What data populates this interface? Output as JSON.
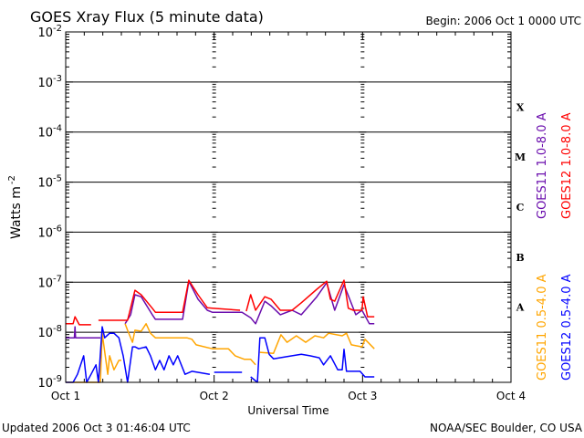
{
  "chart_data": {
    "type": "line",
    "title": "GOES Xray Flux (5 minute data)",
    "begin_label": "Begin:  2006 Oct 1 0000 UTC",
    "xlabel": "Universal Time",
    "ylabel": "Watts m",
    "ylabel_sup": "-2",
    "yscale": "log",
    "x_units": "hours since 2006 Oct 1 0000 UTC",
    "xlim": [
      0,
      72
    ],
    "ylim_log10": [
      -9,
      -2
    ],
    "x_ticks": [
      {
        "value": 0,
        "label": "Oct 1"
      },
      {
        "value": 24,
        "label": "Oct 2"
      },
      {
        "value": 48,
        "label": "Oct 3"
      },
      {
        "value": 72,
        "label": "Oct 4"
      }
    ],
    "y_ticks": [
      {
        "exp": -2,
        "base": "10",
        "sup": "-2"
      },
      {
        "exp": -3,
        "base": "10",
        "sup": "-3"
      },
      {
        "exp": -4,
        "base": "10",
        "sup": "-4"
      },
      {
        "exp": -5,
        "base": "10",
        "sup": "-5"
      },
      {
        "exp": -6,
        "base": "10",
        "sup": "-6"
      },
      {
        "exp": -7,
        "base": "10",
        "sup": "-7"
      },
      {
        "exp": -8,
        "base": "10",
        "sup": "-8"
      },
      {
        "exp": -9,
        "base": "10",
        "sup": "-9"
      }
    ],
    "flare_classes": [
      {
        "label": "X",
        "exp": -3.5
      },
      {
        "label": "M",
        "exp": -4.5
      },
      {
        "label": "C",
        "exp": -5.5
      },
      {
        "label": "B",
        "exp": -6.5
      },
      {
        "label": "A",
        "exp": -7.5
      }
    ],
    "grid_lines_log10": [
      -3,
      -4,
      -5,
      -6,
      -7,
      -8
    ],
    "series": [
      {
        "name": "GOES11 1.0-8.0 A",
        "color": "#6a0dad",
        "points_log10": [
          [
            0,
            -8.11
          ],
          [
            1.4,
            -8.11
          ],
          [
            1.5,
            -7.89
          ],
          [
            1.6,
            -8.11
          ],
          [
            5.6,
            -8.11
          ],
          null,
          [
            9.6,
            -7.83
          ],
          [
            10.5,
            -7.65
          ],
          [
            11.2,
            -7.25
          ],
          [
            12.2,
            -7.29
          ],
          [
            14.0,
            -7.65
          ],
          [
            14.5,
            -7.74
          ],
          [
            18.9,
            -7.74
          ],
          [
            19.9,
            -6.98
          ],
          [
            21.4,
            -7.34
          ],
          [
            22.9,
            -7.56
          ],
          [
            23.7,
            -7.6
          ],
          [
            28.5,
            -7.6
          ],
          [
            29.9,
            -7.71
          ],
          [
            30.7,
            -7.83
          ],
          [
            32.2,
            -7.38
          ],
          [
            33.2,
            -7.47
          ],
          [
            34.7,
            -7.65
          ],
          [
            36.6,
            -7.56
          ],
          [
            38.1,
            -7.65
          ],
          [
            40.6,
            -7.29
          ],
          [
            42.2,
            -7.01
          ],
          [
            43.5,
            -7.56
          ],
          [
            45.0,
            -7.05
          ],
          [
            46.9,
            -7.65
          ],
          [
            47.9,
            -7.56
          ],
          [
            49.1,
            -7.83
          ],
          [
            49.9,
            -7.83
          ]
        ]
      },
      {
        "name": "GOES12 1.0-8.0 A",
        "color": "#ff0000",
        "points_log10": [
          [
            0,
            -7.83
          ],
          [
            1.2,
            -7.83
          ],
          [
            1.5,
            -7.69
          ],
          [
            2.2,
            -7.85
          ],
          [
            4.1,
            -7.85
          ],
          null,
          [
            5.3,
            -7.76
          ],
          [
            10.0,
            -7.76
          ],
          [
            10.5,
            -7.51
          ],
          [
            11.2,
            -7.16
          ],
          [
            12.2,
            -7.25
          ],
          [
            14.0,
            -7.52
          ],
          [
            14.5,
            -7.6
          ],
          [
            18.9,
            -7.6
          ],
          [
            19.9,
            -6.96
          ],
          [
            21.4,
            -7.25
          ],
          [
            22.9,
            -7.51
          ],
          [
            23.7,
            -7.52
          ],
          [
            28.2,
            -7.56
          ],
          null,
          [
            29.2,
            -7.58
          ],
          [
            29.9,
            -7.25
          ],
          [
            30.7,
            -7.56
          ],
          [
            32.2,
            -7.29
          ],
          [
            33.2,
            -7.34
          ],
          [
            34.7,
            -7.56
          ],
          [
            36.6,
            -7.56
          ],
          [
            38.1,
            -7.41
          ],
          [
            40.6,
            -7.14
          ],
          [
            42.2,
            -6.98
          ],
          [
            42.8,
            -7.34
          ],
          [
            43.5,
            -7.38
          ],
          [
            45.0,
            -6.96
          ],
          [
            45.7,
            -7.52
          ],
          [
            46.5,
            -7.56
          ],
          [
            47.9,
            -7.56
          ],
          [
            48.1,
            -7.29
          ],
          [
            48.8,
            -7.69
          ],
          [
            49.9,
            -7.69
          ]
        ]
      },
      {
        "name": "GOES11 0.5-4.0 A",
        "color": "#ffa500",
        "points_log10": [
          [
            0,
            -9
          ],
          [
            5.6,
            -9
          ],
          [
            5.9,
            -8.02
          ],
          [
            6.8,
            -8.84
          ],
          [
            7.1,
            -8.47
          ],
          [
            7.8,
            -8.75
          ],
          [
            8.6,
            -8.56
          ],
          [
            9.0,
            -8.56
          ],
          null,
          [
            9.6,
            -7.83
          ],
          [
            10.0,
            -7.96
          ],
          [
            10.8,
            -8.2
          ],
          [
            11.2,
            -7.96
          ],
          [
            12.2,
            -7.98
          ],
          [
            13.0,
            -7.83
          ],
          [
            13.7,
            -8.02
          ],
          [
            14.5,
            -8.11
          ],
          [
            19.6,
            -8.11
          ],
          [
            20.4,
            -8.14
          ],
          [
            21.1,
            -8.25
          ],
          [
            23.7,
            -8.33
          ],
          [
            26.3,
            -8.33
          ],
          [
            27.4,
            -8.47
          ],
          [
            28.9,
            -8.54
          ],
          [
            29.9,
            -8.54
          ],
          [
            30.7,
            -8.65
          ],
          null,
          [
            31.4,
            -8.4
          ],
          [
            33.6,
            -8.42
          ],
          [
            34.8,
            -8.05
          ],
          [
            35.8,
            -8.2
          ],
          [
            37.3,
            -8.07
          ],
          [
            38.8,
            -8.2
          ],
          [
            40.3,
            -8.07
          ],
          [
            41.7,
            -8.11
          ],
          [
            42.5,
            -8.02
          ],
          [
            44.7,
            -8.07
          ],
          [
            45.4,
            -8.02
          ],
          [
            46.2,
            -8.25
          ],
          [
            47.9,
            -8.29
          ],
          [
            48.4,
            -8.14
          ],
          [
            49.9,
            -8.33
          ]
        ]
      },
      {
        "name": "GOES12 0.5-4.0 A",
        "color": "#0000ff",
        "points_log10": [
          [
            0,
            -9
          ],
          [
            1.2,
            -9
          ],
          [
            1.9,
            -8.84
          ],
          [
            2.9,
            -8.47
          ],
          [
            3.4,
            -9
          ],
          [
            4.1,
            -8.84
          ],
          [
            4.9,
            -8.65
          ],
          [
            5.3,
            -9
          ],
          [
            5.9,
            -7.89
          ],
          [
            6.3,
            -8.11
          ],
          [
            7.1,
            -8.02
          ],
          [
            7.8,
            -8.02
          ],
          [
            8.6,
            -8.11
          ],
          [
            9.3,
            -8.47
          ],
          [
            10.0,
            -9
          ],
          [
            10.8,
            -8.29
          ],
          [
            11.2,
            -8.29
          ],
          [
            11.8,
            -8.33
          ],
          [
            13.0,
            -8.29
          ],
          [
            13.7,
            -8.47
          ],
          [
            14.5,
            -8.75
          ],
          [
            15.2,
            -8.56
          ],
          [
            15.9,
            -8.75
          ],
          [
            16.7,
            -8.47
          ],
          [
            17.4,
            -8.65
          ],
          [
            18.1,
            -8.47
          ],
          [
            19.3,
            -8.84
          ],
          [
            20.4,
            -8.78
          ],
          [
            23.3,
            -8.84
          ],
          null,
          [
            24.0,
            -8.8
          ],
          [
            28.5,
            -8.8
          ],
          null,
          [
            29.9,
            -8.89
          ],
          [
            31.0,
            -9
          ],
          [
            31.4,
            -8.11
          ],
          [
            32.2,
            -8.11
          ],
          [
            32.9,
            -8.44
          ],
          [
            33.6,
            -8.53
          ],
          [
            36.6,
            -8.47
          ],
          [
            38.1,
            -8.44
          ],
          [
            39.5,
            -8.47
          ],
          [
            41.0,
            -8.51
          ],
          [
            41.7,
            -8.65
          ],
          [
            42.8,
            -8.47
          ],
          [
            44.0,
            -8.75
          ],
          [
            44.7,
            -8.75
          ],
          [
            45.0,
            -8.34
          ],
          [
            45.4,
            -8.78
          ],
          [
            47.6,
            -8.78
          ],
          [
            48.4,
            -8.89
          ],
          [
            49.9,
            -8.89
          ]
        ]
      }
    ]
  },
  "footer": {
    "updated": "Updated 2006 Oct  3 01:46:04 UTC",
    "credit": "NOAA/SEC Boulder, CO USA"
  }
}
